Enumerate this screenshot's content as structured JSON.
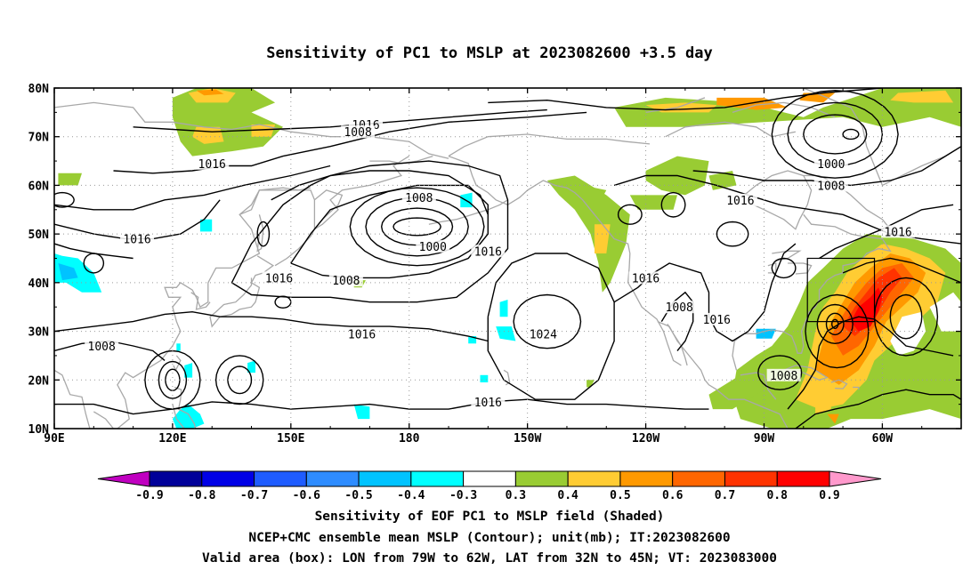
{
  "title": "Sensitivity of PC1 to MSLP at 2023082600 +3.5 day",
  "captions": {
    "line1": "Sensitivity of EOF PC1 to MSLP field (Shaded)",
    "line2": "NCEP+CMC ensemble mean MSLP (Contour); unit(mb); IT:2023082600",
    "line3": "Valid area (box): LON from 79W to 62W, LAT from 32N to 45N; VT: 2023083000"
  },
  "axes": {
    "lat_labels": [
      "80N",
      "70N",
      "60N",
      "50N",
      "40N",
      "30N",
      "20N",
      "10N"
    ],
    "lon_labels": [
      "90E",
      "120E",
      "150E",
      "180",
      "150W",
      "120W",
      "90W",
      "60W"
    ]
  },
  "colorbar": {
    "labels": [
      "-0.9",
      "-0.8",
      "-0.7",
      "-0.6",
      "-0.5",
      "-0.4",
      "-0.3",
      "0.3",
      "0.4",
      "0.5",
      "0.6",
      "0.7",
      "0.8",
      "0.9"
    ],
    "colors": [
      "#c000c0",
      "#000099",
      "#0000e6",
      "#1f5cff",
      "#2e8cff",
      "#00c3ff",
      "#00ffff",
      "#ffffff",
      "#99cc33",
      "#ffcc33",
      "#ff9900",
      "#ff6600",
      "#ff3300",
      "#ff0000",
      "#ff99cc"
    ]
  },
  "contour_labels": [
    {
      "text": "1016",
      "lon": 169,
      "lat": 72.5
    },
    {
      "text": "1008",
      "lon": 167,
      "lat": 71
    },
    {
      "text": "1016",
      "lon": 130,
      "lat": 64.5
    },
    {
      "text": "1000",
      "lon": 287,
      "lat": 64.5
    },
    {
      "text": "1008",
      "lon": 182.5,
      "lat": 57.5
    },
    {
      "text": "1008",
      "lon": 287,
      "lat": 60
    },
    {
      "text": "1016",
      "lon": 264,
      "lat": 57
    },
    {
      "text": "1016",
      "lon": 111,
      "lat": 49
    },
    {
      "text": "1000",
      "lon": 186,
      "lat": 47.5
    },
    {
      "text": "1016",
      "lon": 200,
      "lat": 46.5
    },
    {
      "text": "1016",
      "lon": 304,
      "lat": 50.5
    },
    {
      "text": "1016",
      "lon": 147,
      "lat": 41
    },
    {
      "text": "1008",
      "lon": 164,
      "lat": 40.5
    },
    {
      "text": "1016",
      "lon": 240,
      "lat": 41
    },
    {
      "text": "1008",
      "lon": 248.5,
      "lat": 35
    },
    {
      "text": "1016",
      "lon": 258,
      "lat": 32.5
    },
    {
      "text": "1024",
      "lon": 214,
      "lat": 29.5
    },
    {
      "text": "1016",
      "lon": 168,
      "lat": 29.5
    },
    {
      "text": "1008",
      "lon": 102,
      "lat": 27
    },
    {
      "text": "1016",
      "lon": 200,
      "lat": 15.5
    },
    {
      "text": "1008",
      "lon": 275,
      "lat": 21
    }
  ],
  "shading_colors": {
    "green": "#99cc33",
    "yellow": "#ffcc33",
    "orange": "#ff9900",
    "darkorange": "#ff6600",
    "redorange": "#ff3300",
    "red": "#ff0000",
    "cyan": "#00ffff",
    "lightblue": "#00c3ff"
  },
  "box": {
    "lon_min": 281,
    "lon_max": 298,
    "lat_min": 32,
    "lat_max": 45
  }
}
